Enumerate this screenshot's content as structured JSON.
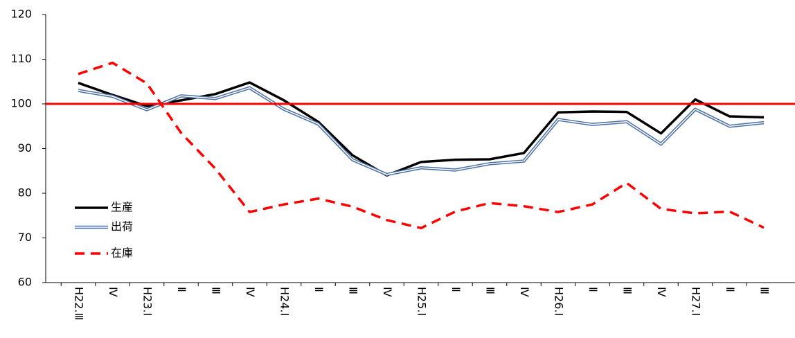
{
  "chart_data": {
    "type": "line",
    "categories": [
      "H22.Ⅲ",
      "Ⅳ",
      "H23.Ⅰ",
      "Ⅱ",
      "Ⅲ",
      "Ⅳ",
      "H24.Ⅰ",
      "Ⅱ",
      "Ⅲ",
      "Ⅳ",
      "H25.Ⅰ",
      "Ⅱ",
      "Ⅲ",
      "Ⅳ",
      "H26.Ⅰ",
      "Ⅱ",
      "Ⅲ",
      "Ⅳ",
      "H27.Ⅰ",
      "Ⅱ",
      "Ⅲ"
    ],
    "series": [
      {
        "name": "生産",
        "color": "#000000",
        "style": "solid",
        "values": [
          104.7,
          102,
          99.5,
          100.8,
          102.2,
          104.8,
          100.8,
          96,
          88.5,
          84,
          87,
          87.5,
          87.6,
          89,
          98.1,
          98.3,
          98.2,
          93.4,
          101,
          97.2,
          97
        ]
      },
      {
        "name": "出荷",
        "color": "#4a6fa5",
        "style": "double",
        "values": [
          103,
          101.7,
          98.7,
          101.8,
          101.2,
          103.6,
          98.8,
          95.5,
          87.5,
          84.2,
          85.7,
          85.2,
          86.6,
          87.2,
          96.5,
          95.4,
          96,
          91,
          98.8,
          95,
          95.8
        ]
      },
      {
        "name": "在庫",
        "color": "#ff0000",
        "style": "dashed",
        "values": [
          106.7,
          109.2,
          104.6,
          93.5,
          85.5,
          75.8,
          77.5,
          78.8,
          77,
          74,
          72.2,
          75.9,
          77.8,
          77.1,
          75.8,
          77.5,
          82.3,
          76.5,
          75.5,
          75.9,
          72.3
        ]
      }
    ],
    "reference_line": {
      "value": 100,
      "color": "#ff0000"
    },
    "ylim": [
      60,
      120
    ],
    "yticks": [
      60,
      70,
      80,
      90,
      100,
      110,
      120
    ],
    "grid": false,
    "legend": "left"
  }
}
